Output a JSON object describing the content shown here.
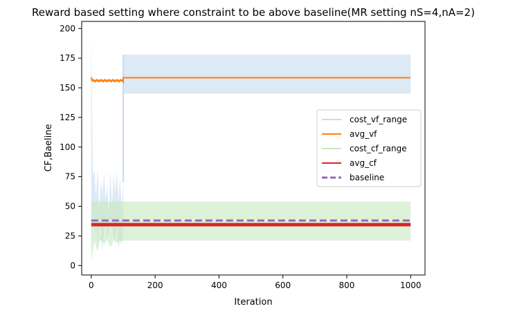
{
  "chart_data": {
    "type": "line",
    "title": "Reward based setting where constraint to be above baseline(MR setting nS=4,nA=2)",
    "xlabel": "Iteration",
    "ylabel": "CF,Baeline",
    "xlim": [
      -30,
      1045
    ],
    "ylim": [
      -8,
      206
    ],
    "xticks": [
      0,
      200,
      400,
      600,
      800,
      1000
    ],
    "yticks": [
      0,
      25,
      50,
      75,
      100,
      125,
      150,
      175,
      200
    ],
    "grid": false,
    "legend_position": "center-right",
    "series": [
      {
        "name": "cost_vf_range",
        "kind": "band",
        "color": "#c6dbef",
        "early_span": [
          0,
          100
        ],
        "early_upper": [
          196,
          75,
          80,
          58,
          83,
          45,
          72,
          60,
          78,
          55,
          68,
          42,
          80,
          50,
          78,
          60,
          79,
          55,
          74,
          48,
          70
        ],
        "early_lower": [
          12,
          48,
          22,
          40,
          15,
          35,
          30,
          12,
          28,
          38,
          22,
          30,
          40,
          33,
          25,
          20,
          35,
          14,
          22,
          18,
          25
        ],
        "late_span": [
          100,
          1000
        ],
        "late_upper": 178,
        "late_lower": 145
      },
      {
        "name": "avg_vf",
        "kind": "line",
        "color": "#ff7f0e",
        "early_span": [
          0,
          100
        ],
        "early_value": 156,
        "late_span": [
          100,
          1000
        ],
        "late_value": 158.5
      },
      {
        "name": "cost_cf_range",
        "kind": "band",
        "color": "#c7e9c0",
        "x_span": [
          0,
          1000
        ],
        "upper": 54,
        "lower": 21,
        "early_lower": [
          4,
          20,
          12,
          25,
          18,
          22,
          15,
          21,
          19,
          22,
          21
        ]
      },
      {
        "name": "avg_cf",
        "kind": "line",
        "color": "#d62728",
        "x_span": [
          0,
          1000
        ],
        "value": 34.5
      },
      {
        "name": "baseline",
        "kind": "dashed",
        "color": "#9467bd",
        "x_span": [
          0,
          1000
        ],
        "value": 38
      }
    ]
  }
}
